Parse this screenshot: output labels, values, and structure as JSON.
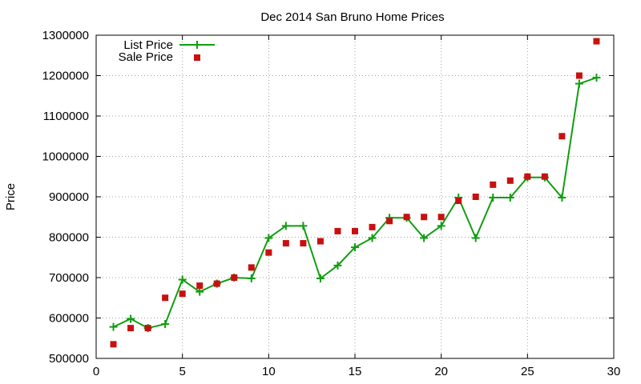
{
  "chart_data": {
    "type": "line",
    "title": "Dec 2014 San Bruno Home Prices",
    "xlabel": "",
    "ylabel": "Price",
    "xlim": [
      0,
      30
    ],
    "ylim": [
      500000,
      1300000
    ],
    "xticks": [
      0,
      5,
      10,
      15,
      20,
      25,
      30
    ],
    "yticks": [
      500000,
      600000,
      700000,
      800000,
      900000,
      1000000,
      1100000,
      1200000,
      1300000
    ],
    "grid": true,
    "legend_position": "top-left",
    "x": [
      1,
      2,
      3,
      4,
      5,
      6,
      7,
      8,
      9,
      10,
      11,
      12,
      13,
      14,
      15,
      16,
      17,
      18,
      19,
      20,
      21,
      22,
      23,
      24,
      25,
      26,
      27,
      28,
      29
    ],
    "series": [
      {
        "name": "List Price",
        "style": "line+cross",
        "color": "#109e10",
        "values": [
          578000,
          598000,
          575000,
          585000,
          695000,
          665000,
          685000,
          700000,
          698000,
          798000,
          828000,
          828000,
          698000,
          730000,
          775000,
          798000,
          848000,
          848000,
          798000,
          828000,
          898000,
          798000,
          898000,
          898000,
          948000,
          948000,
          898000,
          1180000,
          1195000
        ]
      },
      {
        "name": "Sale Price",
        "style": "square",
        "color": "#c81010",
        "values": [
          535000,
          575000,
          575000,
          650000,
          660000,
          680000,
          685000,
          700000,
          725000,
          762000,
          785000,
          785000,
          790000,
          815000,
          815000,
          825000,
          840000,
          850000,
          850000,
          850000,
          890000,
          900000,
          930000,
          940000,
          950000,
          950000,
          1050000,
          1200000,
          1285000
        ]
      }
    ]
  }
}
